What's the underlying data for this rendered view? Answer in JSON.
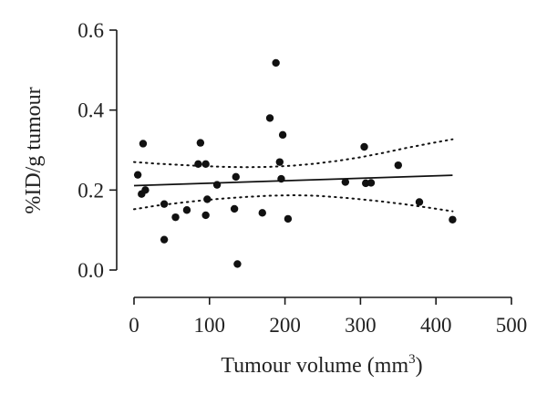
{
  "chart_data": {
    "type": "scatter",
    "xlabel": "Tumour volume (mm",
    "xlabel_sup": "3",
    "xlabel_close": ")",
    "ylabel": "%ID/g tumour",
    "xlim": [
      0,
      500
    ],
    "ylim": [
      0.0,
      0.6
    ],
    "xticks": [
      0,
      100,
      200,
      300,
      400,
      500
    ],
    "yticks": [
      0.0,
      0.2,
      0.4,
      0.6
    ],
    "xtick_labels": [
      "0",
      "100",
      "200",
      "300",
      "400",
      "500"
    ],
    "ytick_labels": [
      "0.0",
      "0.2",
      "0.4",
      "0.6"
    ],
    "grid": false,
    "points": [
      {
        "x": 5,
        "y": 0.238
      },
      {
        "x": 10,
        "y": 0.19
      },
      {
        "x": 12,
        "y": 0.316
      },
      {
        "x": 15,
        "y": 0.2
      },
      {
        "x": 40,
        "y": 0.165
      },
      {
        "x": 40,
        "y": 0.076
      },
      {
        "x": 55,
        "y": 0.132
      },
      {
        "x": 70,
        "y": 0.15
      },
      {
        "x": 85,
        "y": 0.265
      },
      {
        "x": 88,
        "y": 0.318
      },
      {
        "x": 95,
        "y": 0.265
      },
      {
        "x": 95,
        "y": 0.137
      },
      {
        "x": 97,
        "y": 0.177
      },
      {
        "x": 110,
        "y": 0.213
      },
      {
        "x": 133,
        "y": 0.153
      },
      {
        "x": 135,
        "y": 0.233
      },
      {
        "x": 137,
        "y": 0.015
      },
      {
        "x": 170,
        "y": 0.143
      },
      {
        "x": 180,
        "y": 0.38
      },
      {
        "x": 188,
        "y": 0.518
      },
      {
        "x": 193,
        "y": 0.27
      },
      {
        "x": 195,
        "y": 0.228
      },
      {
        "x": 197,
        "y": 0.338
      },
      {
        "x": 204,
        "y": 0.128
      },
      {
        "x": 280,
        "y": 0.22
      },
      {
        "x": 305,
        "y": 0.308
      },
      {
        "x": 307,
        "y": 0.217
      },
      {
        "x": 314,
        "y": 0.218
      },
      {
        "x": 350,
        "y": 0.262
      },
      {
        "x": 378,
        "y": 0.17
      },
      {
        "x": 422,
        "y": 0.126
      }
    ],
    "fit_line": {
      "x": [
        0,
        422
      ],
      "y": [
        0.211,
        0.237
      ]
    },
    "ci_upper": {
      "x": [
        0,
        30,
        60,
        90,
        120,
        150,
        180,
        210,
        240,
        270,
        300,
        330,
        360,
        390,
        422
      ],
      "y": [
        0.27,
        0.266,
        0.263,
        0.26,
        0.258,
        0.257,
        0.258,
        0.261,
        0.266,
        0.273,
        0.282,
        0.293,
        0.305,
        0.316,
        0.327
      ]
    },
    "ci_lower": {
      "x": [
        0,
        30,
        60,
        90,
        120,
        150,
        180,
        210,
        240,
        270,
        300,
        330,
        360,
        390,
        422
      ],
      "y": [
        0.152,
        0.161,
        0.168,
        0.174,
        0.179,
        0.183,
        0.186,
        0.187,
        0.186,
        0.182,
        0.177,
        0.171,
        0.164,
        0.156,
        0.147
      ]
    }
  }
}
